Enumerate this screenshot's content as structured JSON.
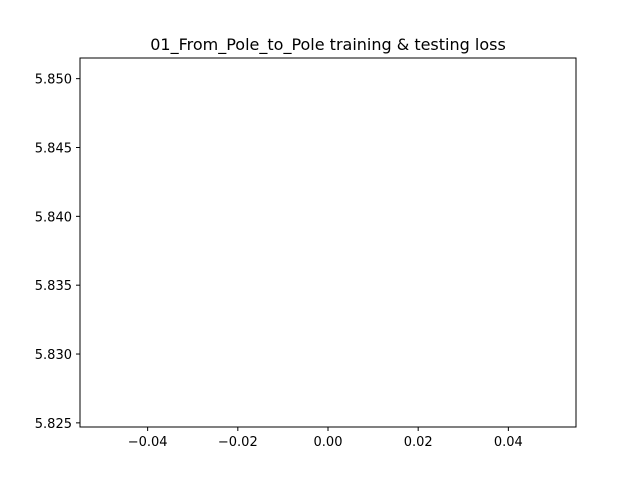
{
  "chart_data": {
    "type": "line",
    "title": "01_From_Pole_to_Pole training & testing loss",
    "xlabel": "",
    "ylabel": "",
    "xlim": [
      -0.055,
      0.055
    ],
    "ylim": [
      5.8247,
      5.8515
    ],
    "x_ticks": [
      {
        "value": -0.04,
        "label": "−0.04"
      },
      {
        "value": -0.02,
        "label": "−0.02"
      },
      {
        "value": 0.0,
        "label": "0.00"
      },
      {
        "value": 0.02,
        "label": "0.02"
      },
      {
        "value": 0.04,
        "label": "0.04"
      }
    ],
    "y_ticks": [
      {
        "value": 5.825,
        "label": "5.825"
      },
      {
        "value": 5.83,
        "label": "5.830"
      },
      {
        "value": 5.835,
        "label": "5.835"
      },
      {
        "value": 5.84,
        "label": "5.840"
      },
      {
        "value": 5.845,
        "label": "5.845"
      },
      {
        "value": 5.85,
        "label": "5.850"
      }
    ],
    "grid": false,
    "series": []
  }
}
